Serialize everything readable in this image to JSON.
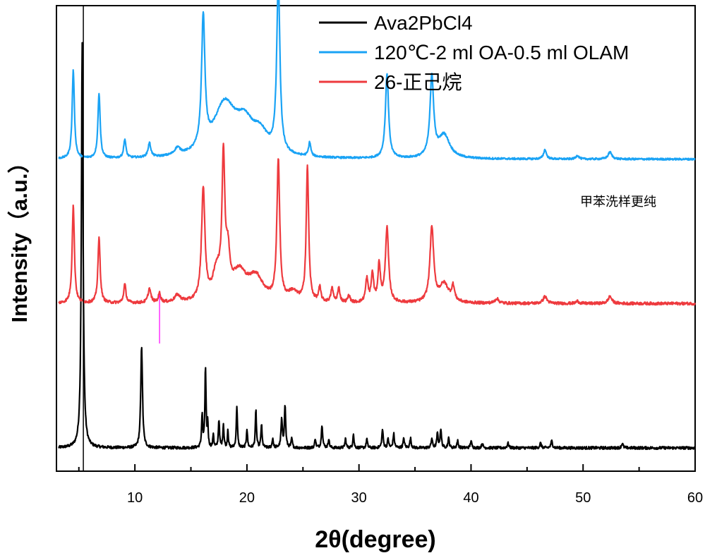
{
  "chart_data": {
    "type": "line",
    "title": "",
    "xlabel": "2θ(degree)",
    "ylabel": "Intensity（a.u.）",
    "xlim": [
      3,
      60
    ],
    "xticks": [
      10,
      20,
      30,
      40,
      50,
      60
    ],
    "yticks": [],
    "grid": false,
    "legend_position": "top-right",
    "annotations": [
      {
        "text": "甲苯洗样更纯",
        "x": 52,
        "y": 0.84
      }
    ],
    "reference_lines": [
      {
        "x": 5.4,
        "color": "#000000",
        "label": ""
      },
      {
        "x": 12.2,
        "color": "#ff00ff",
        "label": ""
      }
    ],
    "series": [
      {
        "name": "Ava2PbCl4",
        "color": "#000000",
        "baseline": 0.05,
        "noise": 0.003,
        "peaks": [
          [
            5.3,
            0.87,
            0.09
          ],
          [
            10.6,
            0.22,
            0.09
          ],
          [
            16.0,
            0.07,
            0.06
          ],
          [
            16.3,
            0.17,
            0.06
          ],
          [
            16.5,
            0.05,
            0.05
          ],
          [
            17.0,
            0.03,
            0.05
          ],
          [
            17.5,
            0.06,
            0.06
          ],
          [
            17.9,
            0.05,
            0.06
          ],
          [
            18.3,
            0.04,
            0.05
          ],
          [
            19.1,
            0.09,
            0.06
          ],
          [
            20.0,
            0.04,
            0.06
          ],
          [
            20.8,
            0.08,
            0.06
          ],
          [
            21.3,
            0.05,
            0.06
          ],
          [
            22.3,
            0.02,
            0.06
          ],
          [
            23.1,
            0.06,
            0.07
          ],
          [
            23.4,
            0.09,
            0.07
          ],
          [
            24.0,
            0.02,
            0.06
          ],
          [
            26.1,
            0.02,
            0.06
          ],
          [
            26.7,
            0.05,
            0.07
          ],
          [
            27.3,
            0.02,
            0.06
          ],
          [
            28.8,
            0.02,
            0.06
          ],
          [
            29.5,
            0.03,
            0.06
          ],
          [
            30.7,
            0.02,
            0.06
          ],
          [
            32.1,
            0.04,
            0.07
          ],
          [
            32.6,
            0.02,
            0.06
          ],
          [
            33.1,
            0.03,
            0.07
          ],
          [
            34.0,
            0.02,
            0.07
          ],
          [
            34.6,
            0.02,
            0.07
          ],
          [
            36.5,
            0.02,
            0.07
          ],
          [
            37.0,
            0.03,
            0.07
          ],
          [
            37.3,
            0.04,
            0.07
          ],
          [
            38.0,
            0.02,
            0.07
          ],
          [
            38.8,
            0.015,
            0.07
          ],
          [
            40.0,
            0.015,
            0.07
          ],
          [
            41.0,
            0.01,
            0.07
          ],
          [
            43.3,
            0.01,
            0.08
          ],
          [
            46.2,
            0.01,
            0.08
          ],
          [
            47.2,
            0.015,
            0.08
          ],
          [
            53.5,
            0.01,
            0.08
          ]
        ]
      },
      {
        "name": "120℃-2 ml OA-0.5 ml OLAM",
        "color": "#1aa3f5",
        "baseline": 0.67,
        "noise": 0.002,
        "peaks": [
          [
            4.5,
            0.19,
            0.12
          ],
          [
            6.8,
            0.14,
            0.12
          ],
          [
            9.1,
            0.04,
            0.12
          ],
          [
            11.3,
            0.03,
            0.15
          ],
          [
            13.8,
            0.015,
            0.3
          ],
          [
            16.1,
            0.28,
            0.18
          ],
          [
            18.0,
            0.11,
            1.2
          ],
          [
            19.8,
            0.06,
            1.0
          ],
          [
            21.2,
            0.04,
            0.8
          ],
          [
            22.8,
            0.37,
            0.17
          ],
          [
            25.6,
            0.03,
            0.12
          ],
          [
            32.5,
            0.18,
            0.17
          ],
          [
            36.5,
            0.17,
            0.2
          ],
          [
            37.6,
            0.05,
            0.6
          ],
          [
            46.6,
            0.02,
            0.15
          ],
          [
            49.5,
            0.008,
            0.15
          ],
          [
            52.4,
            0.015,
            0.2
          ]
        ]
      },
      {
        "name": "26-正己烷",
        "color": "#ee3a3e",
        "baseline": 0.36,
        "noise": 0.003,
        "peaks": [
          [
            4.5,
            0.21,
            0.12
          ],
          [
            6.8,
            0.14,
            0.12
          ],
          [
            9.1,
            0.04,
            0.12
          ],
          [
            11.3,
            0.03,
            0.15
          ],
          [
            12.2,
            0.02,
            0.12
          ],
          [
            13.8,
            0.015,
            0.3
          ],
          [
            16.1,
            0.24,
            0.18
          ],
          [
            17.3,
            0.06,
            0.4
          ],
          [
            17.9,
            0.29,
            0.15
          ],
          [
            18.3,
            0.08,
            0.2
          ],
          [
            19.3,
            0.06,
            0.8
          ],
          [
            20.8,
            0.05,
            0.8
          ],
          [
            22.8,
            0.3,
            0.15
          ],
          [
            24.1,
            0.02,
            0.5
          ],
          [
            25.4,
            0.29,
            0.13
          ],
          [
            26.5,
            0.03,
            0.12
          ],
          [
            27.6,
            0.03,
            0.12
          ],
          [
            28.2,
            0.03,
            0.12
          ],
          [
            29.1,
            0.015,
            0.12
          ],
          [
            30.7,
            0.05,
            0.13
          ],
          [
            31.2,
            0.06,
            0.13
          ],
          [
            31.8,
            0.08,
            0.13
          ],
          [
            32.5,
            0.16,
            0.17
          ],
          [
            36.5,
            0.16,
            0.2
          ],
          [
            37.6,
            0.04,
            0.5
          ],
          [
            38.4,
            0.03,
            0.15
          ],
          [
            42.3,
            0.01,
            0.2
          ],
          [
            46.6,
            0.015,
            0.2
          ],
          [
            49.5,
            0.005,
            0.15
          ],
          [
            52.4,
            0.015,
            0.2
          ]
        ]
      }
    ]
  },
  "styles": {
    "axis_color": "#000000",
    "background": "#ffffff"
  }
}
